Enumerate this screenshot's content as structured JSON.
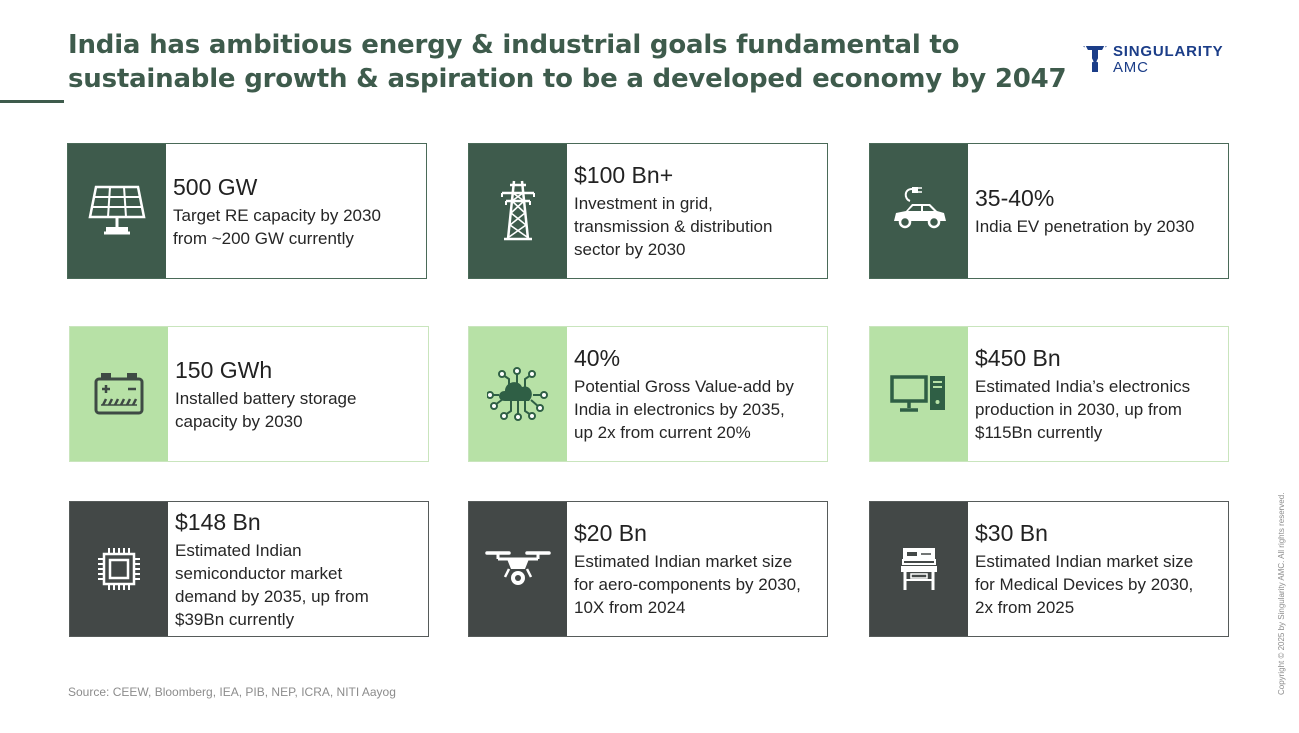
{
  "title": "India has ambitious energy & industrial goals fundamental to sustainable growth & aspiration to be a developed economy by 2047",
  "logo": {
    "name": "SINGULARITY",
    "sub": "AMC",
    "color": "#1b3d88"
  },
  "colors": {
    "dark_green": "#3e5b4c",
    "light_green": "#b7e1a6",
    "charcoal": "#434847"
  },
  "cards": [
    {
      "icon": "solar-panel-icon",
      "metric": "500 GW",
      "desc_lines": [
        "Target RE capacity by 2030",
        "from ~200 GW currently"
      ]
    },
    {
      "icon": "transmission-tower-icon",
      "metric": "$100 Bn+",
      "desc_lines": [
        "Investment in grid,",
        "transmission & distribution",
        "sector by 2030"
      ]
    },
    {
      "icon": "electric-car-icon",
      "metric": "35-40%",
      "desc_lines": [
        "India EV penetration by 2030"
      ]
    },
    {
      "icon": "battery-icon",
      "metric": "150 GWh",
      "desc_lines": [
        "Installed battery storage",
        "capacity by 2030"
      ]
    },
    {
      "icon": "cloud-network-icon",
      "metric": "40%",
      "desc_lines": [
        "Potential Gross Value-add by",
        "India in electronics by 2035,",
        "up 2x from current 20%"
      ]
    },
    {
      "icon": "desktop-computer-icon",
      "metric": "$450 Bn",
      "desc_lines": [
        "Estimated India’s electronics",
        "production in 2030, up from",
        "$115Bn currently"
      ]
    },
    {
      "icon": "microchip-icon",
      "metric": "$148 Bn",
      "desc_lines": [
        "Estimated Indian",
        "semiconductor market",
        "demand by 2035, up from",
        "$39Bn currently"
      ]
    },
    {
      "icon": "drone-icon",
      "metric": "$20 Bn",
      "desc_lines": [
        "Estimated Indian market size",
        "for aero-components by 2030,",
        "10X from 2024"
      ]
    },
    {
      "icon": "medical-device-icon",
      "metric": "$30 Bn",
      "desc_lines": [
        "Estimated Indian market size",
        "for Medical Devices by 2030,",
        "2x from 2025"
      ]
    }
  ],
  "source": "Source: CEEW, Bloomberg, IEA, PIB, NEP, ICRA, NITI Aayog",
  "copyright": "Copyright © 2025 by Singularity AMC. All rights reserved."
}
